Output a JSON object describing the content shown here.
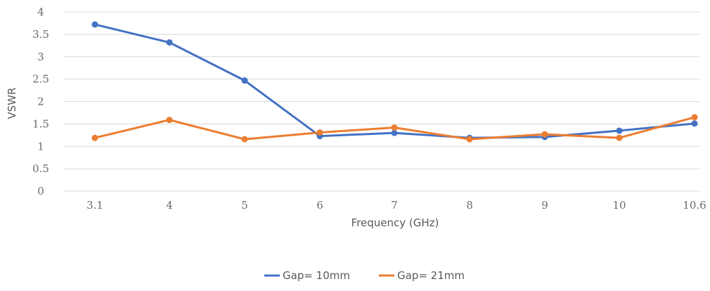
{
  "chart_data": {
    "type": "line",
    "title": "",
    "xlabel": "Frequency (GHz)",
    "ylabel": "VSWR",
    "categories": [
      "3.1",
      "4",
      "5",
      "6",
      "7",
      "8",
      "9",
      "10",
      "10.6"
    ],
    "y_ticks": [
      "0",
      "0.5",
      "1",
      "1.5",
      "2",
      "2.5",
      "3",
      "3.5",
      "4"
    ],
    "ylim": [
      0,
      4
    ],
    "grid": "horizontal",
    "legend_position": "bottom",
    "series": [
      {
        "name": "Gap= 10mm",
        "color": "#4472c4",
        "values": [
          3.72,
          3.32,
          2.47,
          1.23,
          1.3,
          1.19,
          1.21,
          1.35,
          1.51
        ]
      },
      {
        "name": "Gap= 21mm",
        "color": "#ed7d31",
        "values": [
          1.19,
          1.59,
          1.16,
          1.31,
          1.42,
          1.16,
          1.27,
          1.19,
          1.65
        ]
      }
    ]
  }
}
